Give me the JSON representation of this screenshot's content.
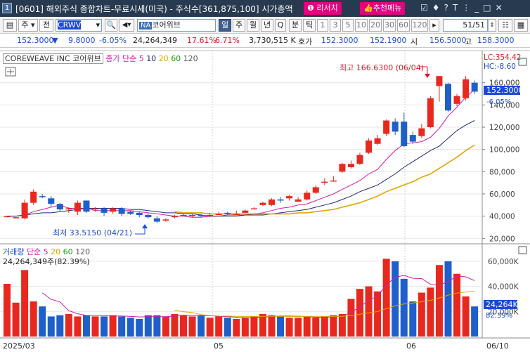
{
  "window": {
    "num": "1",
    "title": "[0601] 해외주식 종합차트-무료시세(미국) - 주식수[361,875,100] 시가총액",
    "research": "리서치",
    "recommend": "추천메뉴"
  },
  "toolbar": {
    "market": "주",
    "prev": "전",
    "code": "CRWV",
    "na": "NA",
    "name": "코어위브",
    "periods": [
      "일",
      "주",
      "월",
      "년",
      "Q",
      "분",
      "틱"
    ],
    "minutes": [
      "1",
      "3",
      "5",
      "10",
      "20",
      "30",
      "60",
      "120"
    ],
    "page": "51/51"
  },
  "quote": {
    "price": "152.3000",
    "arrow": "▼",
    "change": "9.8000",
    "rate": "-6.05%",
    "volume": "24,264,349",
    "vol_rate": "17.61%",
    "ratio": "6.71%",
    "amount": "3,730,515 K",
    "ask_label": "호가",
    "ask": "152.3000",
    "bid": "152.1900",
    "open_label": "시",
    "open": "156.5000",
    "high_label": "고",
    "high": "158.3000"
  },
  "chart_header": {
    "name": "COREWEAVE INC",
    "kname": "코어위브",
    "ma_label": "종가 단순",
    "ma": [
      "5",
      "10",
      "20",
      "60",
      "120"
    ],
    "lc": "LC:354.42",
    "hc": "HC:-8.60"
  },
  "annotations": {
    "high": "최고 166.6300 (06/04)",
    "low": "최저 33.5150 (04/21)"
  },
  "price_axis": {
    "ticks": [
      "160,000",
      "140,000",
      "120,000",
      "100,000",
      "80,000",
      "60,000",
      "40,000",
      "20,000"
    ],
    "current": "152.3000",
    "current_rate": "-6.05%"
  },
  "volume_header": {
    "label": "거래량",
    "ma_label": "단순",
    "ma": [
      "5",
      "20",
      "60",
      "120"
    ],
    "value": "24,264,349주(82.39%)"
  },
  "volume_axis": {
    "ticks": [
      "60,000K",
      "40,000K",
      "20,000K"
    ],
    "current": "24,264K",
    "current_rate": "82.39%"
  },
  "date_axis": [
    "2025/03",
    "05",
    "06",
    "06/10"
  ],
  "colors": {
    "up": "#e8281e",
    "down": "#1f5fc9",
    "ma5": "#d11ab0",
    "ma10": "#1f2a7a",
    "ma20": "#e2a500",
    "ma60": "#1a9a1a",
    "ma120": "#555555",
    "titlebar": "#283a4f",
    "accent": "#e5007e"
  },
  "chart_data": {
    "type": "candlestick",
    "ylim": [
      17,
      175
    ],
    "vol_ylim": [
      0,
      70000
    ],
    "candles": [
      [
        40,
        40,
        40,
        39
      ],
      [
        39,
        39,
        39,
        38
      ],
      [
        38,
        52,
        55,
        37
      ],
      [
        52,
        62,
        64,
        50
      ],
      [
        58,
        57,
        60,
        56
      ],
      [
        56,
        51,
        58,
        48
      ],
      [
        51,
        46,
        52,
        44
      ],
      [
        46,
        47,
        48,
        43
      ],
      [
        44,
        52,
        54,
        41
      ],
      [
        54,
        44,
        54,
        43
      ],
      [
        46,
        47,
        48,
        44
      ],
      [
        47,
        43,
        48,
        40
      ],
      [
        44,
        47,
        48,
        42
      ],
      [
        47,
        42,
        48,
        40
      ],
      [
        44,
        42,
        45,
        41
      ],
      [
        43,
        41,
        44,
        39
      ],
      [
        41,
        39,
        43,
        38
      ],
      [
        38,
        35,
        40,
        34
      ],
      [
        36,
        37,
        38,
        35
      ],
      [
        39,
        40,
        41,
        38
      ],
      [
        40,
        41,
        42,
        40
      ],
      [
        40,
        41,
        42,
        39
      ],
      [
        41,
        40,
        42,
        39
      ],
      [
        40,
        41,
        43,
        39
      ],
      [
        41,
        42,
        44,
        41
      ],
      [
        43,
        42,
        44,
        41
      ],
      [
        42,
        42,
        45,
        41
      ],
      [
        43,
        45,
        46,
        43
      ],
      [
        47,
        47,
        48,
        46
      ],
      [
        50,
        52,
        53,
        49
      ],
      [
        50,
        55,
        56,
        49
      ],
      [
        55,
        54,
        57,
        52
      ],
      [
        56,
        58,
        59,
        54
      ],
      [
        53,
        55,
        57,
        53
      ],
      [
        55,
        61,
        63,
        54
      ],
      [
        61,
        66,
        68,
        60
      ],
      [
        70,
        71,
        74,
        68
      ],
      [
        72,
        72,
        76,
        71
      ],
      [
        80,
        87,
        88,
        79
      ],
      [
        84,
        87,
        90,
        83
      ],
      [
        87,
        95,
        97,
        86
      ],
      [
        97,
        108,
        110,
        96
      ],
      [
        105,
        110,
        113,
        104
      ],
      [
        114,
        126,
        127,
        112
      ],
      [
        125,
        116,
        128,
        113
      ],
      [
        125,
        103,
        133,
        102
      ],
      [
        113,
        107,
        116,
        105
      ],
      [
        112,
        119,
        123,
        110
      ],
      [
        120,
        146,
        148,
        119
      ],
      [
        157,
        166,
        166,
        143
      ],
      [
        159,
        135,
        160,
        134
      ],
      [
        141,
        148,
        150,
        139
      ],
      [
        146,
        163,
        166,
        144
      ],
      [
        160,
        152,
        162,
        150
      ]
    ],
    "volume": [
      42,
      27,
      53,
      28,
      24,
      16,
      17,
      18,
      16,
      17,
      16,
      16,
      17,
      16,
      15,
      14,
      17,
      17,
      16,
      18,
      17,
      16,
      17,
      15,
      16,
      15,
      14,
      15,
      16,
      18,
      17,
      16,
      15,
      15,
      16,
      15,
      16,
      17,
      18,
      30,
      38,
      40,
      36,
      62,
      60,
      46,
      28,
      35,
      39,
      57,
      60,
      50,
      32,
      24
    ],
    "series": [
      {
        "name": "5",
        "values": [
          40,
          40,
          41,
          44,
          46,
          48,
          50,
          47,
          47,
          47,
          45,
          45,
          45,
          45,
          45,
          44,
          43,
          42,
          41,
          40,
          40,
          39,
          39,
          40,
          40,
          41,
          41,
          41,
          42,
          43,
          45,
          47,
          48,
          50,
          51,
          54,
          57,
          60,
          64,
          68,
          72,
          78,
          82,
          91,
          99,
          105,
          106,
          107,
          111,
          119,
          130,
          138,
          147,
          154
        ]
      },
      {
        "name": "10",
        "values": [
          40,
          40,
          41,
          42,
          43,
          43,
          44,
          45,
          46,
          47,
          47,
          47,
          47,
          47,
          46,
          46,
          45,
          44,
          43,
          43,
          42,
          42,
          41,
          40,
          40,
          40,
          40,
          41,
          41,
          41,
          42,
          43,
          44,
          45,
          46,
          48,
          50,
          52,
          55,
          58,
          62,
          65,
          68,
          73,
          78,
          84,
          89,
          94,
          99,
          103,
          110,
          117,
          122,
          126
        ]
      },
      {
        "name": "20",
        "values": [
          null,
          null,
          null,
          null,
          null,
          null,
          null,
          null,
          null,
          null,
          null,
          null,
          null,
          null,
          null,
          null,
          null,
          null,
          null,
          44,
          43,
          43,
          43,
          42,
          42,
          42,
          42,
          42,
          42,
          42,
          42,
          42,
          42,
          43,
          43,
          44,
          45,
          46,
          48,
          50,
          52,
          55,
          58,
          62,
          65,
          68,
          71,
          75,
          78,
          83,
          88,
          93,
          99,
          104
        ]
      }
    ]
  }
}
